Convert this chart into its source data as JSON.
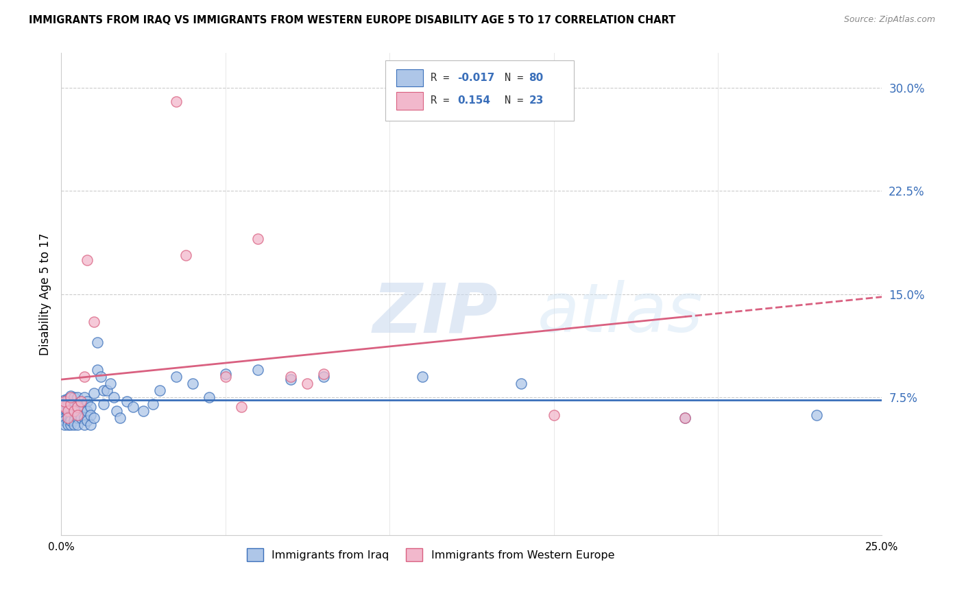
{
  "title": "IMMIGRANTS FROM IRAQ VS IMMIGRANTS FROM WESTERN EUROPE DISABILITY AGE 5 TO 17 CORRELATION CHART",
  "source": "Source: ZipAtlas.com",
  "ylabel": "Disability Age 5 to 17",
  "xlim": [
    0.0,
    0.25
  ],
  "ylim": [
    -0.025,
    0.325
  ],
  "yticks": [
    0.075,
    0.15,
    0.225,
    0.3
  ],
  "ytick_labels": [
    "7.5%",
    "15.0%",
    "22.5%",
    "30.0%"
  ],
  "color_iraq": "#aec6e8",
  "color_europe": "#f2b8cc",
  "color_iraq_line": "#3a6fba",
  "color_europe_line": "#d96080",
  "watermark_zip": "ZIP",
  "watermark_atlas": "atlas",
  "iraq_x": [
    0.0,
    0.001,
    0.001,
    0.001,
    0.001,
    0.001,
    0.001,
    0.001,
    0.001,
    0.001,
    0.002,
    0.002,
    0.002,
    0.002,
    0.002,
    0.002,
    0.002,
    0.002,
    0.003,
    0.003,
    0.003,
    0.003,
    0.003,
    0.003,
    0.003,
    0.004,
    0.004,
    0.004,
    0.004,
    0.004,
    0.004,
    0.004,
    0.005,
    0.005,
    0.005,
    0.005,
    0.005,
    0.005,
    0.006,
    0.006,
    0.006,
    0.006,
    0.007,
    0.007,
    0.007,
    0.007,
    0.008,
    0.008,
    0.008,
    0.009,
    0.009,
    0.009,
    0.01,
    0.01,
    0.011,
    0.011,
    0.012,
    0.013,
    0.013,
    0.014,
    0.015,
    0.016,
    0.017,
    0.018,
    0.02,
    0.022,
    0.025,
    0.028,
    0.03,
    0.035,
    0.04,
    0.045,
    0.05,
    0.06,
    0.07,
    0.08,
    0.11,
    0.14,
    0.19,
    0.23
  ],
  "iraq_y": [
    0.065,
    0.072,
    0.068,
    0.071,
    0.065,
    0.06,
    0.058,
    0.055,
    0.073,
    0.067,
    0.069,
    0.063,
    0.058,
    0.055,
    0.072,
    0.068,
    0.062,
    0.074,
    0.07,
    0.066,
    0.072,
    0.06,
    0.055,
    0.058,
    0.076,
    0.068,
    0.062,
    0.058,
    0.055,
    0.072,
    0.075,
    0.065,
    0.07,
    0.068,
    0.065,
    0.06,
    0.055,
    0.075,
    0.068,
    0.072,
    0.065,
    0.06,
    0.075,
    0.068,
    0.06,
    0.055,
    0.072,
    0.065,
    0.058,
    0.068,
    0.062,
    0.055,
    0.078,
    0.06,
    0.115,
    0.095,
    0.09,
    0.08,
    0.07,
    0.08,
    0.085,
    0.075,
    0.065,
    0.06,
    0.072,
    0.068,
    0.065,
    0.07,
    0.08,
    0.09,
    0.085,
    0.075,
    0.092,
    0.095,
    0.088,
    0.09,
    0.09,
    0.085,
    0.06,
    0.062
  ],
  "europe_x": [
    0.001,
    0.001,
    0.002,
    0.002,
    0.003,
    0.003,
    0.004,
    0.005,
    0.005,
    0.006,
    0.007,
    0.008,
    0.01,
    0.035,
    0.038,
    0.05,
    0.055,
    0.06,
    0.07,
    0.075,
    0.08,
    0.15,
    0.19
  ],
  "europe_y": [
    0.068,
    0.072,
    0.065,
    0.06,
    0.07,
    0.075,
    0.065,
    0.068,
    0.062,
    0.072,
    0.09,
    0.175,
    0.13,
    0.29,
    0.178,
    0.09,
    0.068,
    0.19,
    0.09,
    0.085,
    0.092,
    0.062,
    0.06
  ],
  "europe_line_start_y": 0.088,
  "europe_line_end_y": 0.148,
  "iraq_line_start_y": 0.073,
  "iraq_line_end_y": 0.073
}
